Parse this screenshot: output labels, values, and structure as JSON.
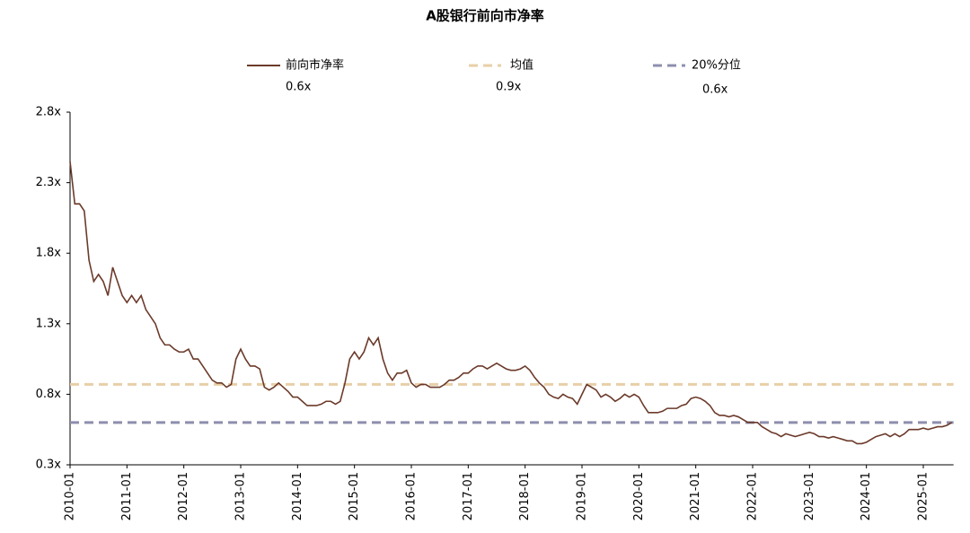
{
  "chart_data": {
    "type": "line",
    "title": "A股银行前向市净率",
    "x": [
      "2010-01",
      "2010-02",
      "2010-03",
      "2010-04",
      "2010-05",
      "2010-06",
      "2010-07",
      "2010-08",
      "2010-09",
      "2010-10",
      "2010-11",
      "2010-12",
      "2011-01",
      "2011-02",
      "2011-03",
      "2011-04",
      "2011-05",
      "2011-06",
      "2011-07",
      "2011-08",
      "2011-09",
      "2011-10",
      "2011-11",
      "2011-12",
      "2012-01",
      "2012-02",
      "2012-03",
      "2012-04",
      "2012-05",
      "2012-06",
      "2012-07",
      "2012-08",
      "2012-09",
      "2012-10",
      "2012-11",
      "2012-12",
      "2013-01",
      "2013-02",
      "2013-03",
      "2013-04",
      "2013-05",
      "2013-06",
      "2013-07",
      "2013-08",
      "2013-09",
      "2013-10",
      "2013-11",
      "2013-12",
      "2014-01",
      "2014-02",
      "2014-03",
      "2014-04",
      "2014-05",
      "2014-06",
      "2014-07",
      "2014-08",
      "2014-09",
      "2014-10",
      "2014-11",
      "2014-12",
      "2015-01",
      "2015-02",
      "2015-03",
      "2015-04",
      "2015-05",
      "2015-06",
      "2015-07",
      "2015-08",
      "2015-09",
      "2015-10",
      "2015-11",
      "2015-12",
      "2016-01",
      "2016-02",
      "2016-03",
      "2016-04",
      "2016-05",
      "2016-06",
      "2016-07",
      "2016-08",
      "2016-09",
      "2016-10",
      "2016-11",
      "2016-12",
      "2017-01",
      "2017-02",
      "2017-03",
      "2017-04",
      "2017-05",
      "2017-06",
      "2017-07",
      "2017-08",
      "2017-09",
      "2017-10",
      "2017-11",
      "2017-12",
      "2018-01",
      "2018-02",
      "2018-03",
      "2018-04",
      "2018-05",
      "2018-06",
      "2018-07",
      "2018-08",
      "2018-09",
      "2018-10",
      "2018-11",
      "2018-12",
      "2019-01",
      "2019-02",
      "2019-03",
      "2019-04",
      "2019-05",
      "2019-06",
      "2019-07",
      "2019-08",
      "2019-09",
      "2019-10",
      "2019-11",
      "2019-12",
      "2020-01",
      "2020-02",
      "2020-03",
      "2020-04",
      "2020-05",
      "2020-06",
      "2020-07",
      "2020-08",
      "2020-09",
      "2020-10",
      "2020-11",
      "2020-12",
      "2021-01",
      "2021-02",
      "2021-03",
      "2021-04",
      "2021-05",
      "2021-06",
      "2021-07",
      "2021-08",
      "2021-09",
      "2021-10",
      "2021-11",
      "2021-12",
      "2022-01",
      "2022-02",
      "2022-03",
      "2022-04",
      "2022-05",
      "2022-06",
      "2022-07",
      "2022-08",
      "2022-09",
      "2022-10",
      "2022-11",
      "2022-12",
      "2023-01",
      "2023-02",
      "2023-03",
      "2023-04",
      "2023-05",
      "2023-06",
      "2023-07",
      "2023-08",
      "2023-09",
      "2023-10",
      "2023-11",
      "2023-12",
      "2024-01",
      "2024-02",
      "2024-03",
      "2024-04",
      "2024-05",
      "2024-06",
      "2024-07",
      "2024-08",
      "2024-09",
      "2024-10",
      "2024-11",
      "2024-12",
      "2025-01",
      "2025-02",
      "2025-03",
      "2025-04",
      "2025-05",
      "2025-06",
      "2025-07"
    ],
    "series": [
      {
        "name": "前向市净率",
        "color": "#6b3a2a",
        "value_label": "0.6x",
        "values": [
          2.45,
          2.15,
          2.15,
          2.1,
          1.75,
          1.6,
          1.65,
          1.6,
          1.5,
          1.7,
          1.6,
          1.5,
          1.45,
          1.5,
          1.45,
          1.5,
          1.4,
          1.35,
          1.3,
          1.2,
          1.15,
          1.15,
          1.12,
          1.1,
          1.1,
          1.12,
          1.05,
          1.05,
          1.0,
          0.95,
          0.9,
          0.88,
          0.88,
          0.85,
          0.87,
          1.05,
          1.12,
          1.05,
          1.0,
          1.0,
          0.98,
          0.85,
          0.83,
          0.85,
          0.88,
          0.85,
          0.82,
          0.78,
          0.78,
          0.75,
          0.72,
          0.72,
          0.72,
          0.73,
          0.75,
          0.75,
          0.73,
          0.75,
          0.88,
          1.05,
          1.1,
          1.05,
          1.1,
          1.2,
          1.15,
          1.2,
          1.05,
          0.95,
          0.9,
          0.95,
          0.95,
          0.97,
          0.88,
          0.85,
          0.87,
          0.87,
          0.85,
          0.85,
          0.85,
          0.87,
          0.9,
          0.9,
          0.92,
          0.95,
          0.95,
          0.98,
          1.0,
          1.0,
          0.98,
          1.0,
          1.02,
          1.0,
          0.98,
          0.97,
          0.97,
          0.98,
          1.0,
          0.97,
          0.92,
          0.88,
          0.85,
          0.8,
          0.78,
          0.77,
          0.8,
          0.78,
          0.77,
          0.73,
          0.8,
          0.87,
          0.85,
          0.83,
          0.78,
          0.8,
          0.78,
          0.75,
          0.77,
          0.8,
          0.78,
          0.8,
          0.78,
          0.72,
          0.67,
          0.67,
          0.67,
          0.68,
          0.7,
          0.7,
          0.7,
          0.72,
          0.73,
          0.77,
          0.78,
          0.77,
          0.75,
          0.72,
          0.67,
          0.65,
          0.65,
          0.64,
          0.65,
          0.64,
          0.62,
          0.6,
          0.6,
          0.6,
          0.57,
          0.55,
          0.53,
          0.52,
          0.5,
          0.52,
          0.51,
          0.5,
          0.51,
          0.52,
          0.53,
          0.52,
          0.5,
          0.5,
          0.49,
          0.5,
          0.49,
          0.48,
          0.47,
          0.47,
          0.45,
          0.45,
          0.46,
          0.48,
          0.5,
          0.51,
          0.52,
          0.5,
          0.52,
          0.5,
          0.52,
          0.55,
          0.55,
          0.55,
          0.56,
          0.55,
          0.56,
          0.57,
          0.57,
          0.58,
          0.6
        ]
      }
    ],
    "reference_lines": [
      {
        "name": "均值",
        "value": 0.87,
        "value_label": "0.9x",
        "color": "#e8cfa8"
      },
      {
        "name": "20%分位",
        "value": 0.6,
        "value_label": "0.6x",
        "color": "#8e8fae"
      }
    ],
    "ylim": [
      0.3,
      2.8
    ],
    "yticks": [
      {
        "value": 0.3,
        "label": "0.3x"
      },
      {
        "value": 0.8,
        "label": "0.8x"
      },
      {
        "value": 1.3,
        "label": "1.3x"
      },
      {
        "value": 1.8,
        "label": "1.8x"
      },
      {
        "value": 2.3,
        "label": "2.3x"
      },
      {
        "value": 2.8,
        "label": "2.8x"
      }
    ],
    "xticks": [
      "2010-01",
      "2011-01",
      "2012-01",
      "2013-01",
      "2014-01",
      "2015-01",
      "2016-01",
      "2017-01",
      "2018-01",
      "2019-01",
      "2020-01",
      "2021-01",
      "2022-01",
      "2023-01",
      "2024-01",
      "2025-01"
    ],
    "legend": "top"
  }
}
